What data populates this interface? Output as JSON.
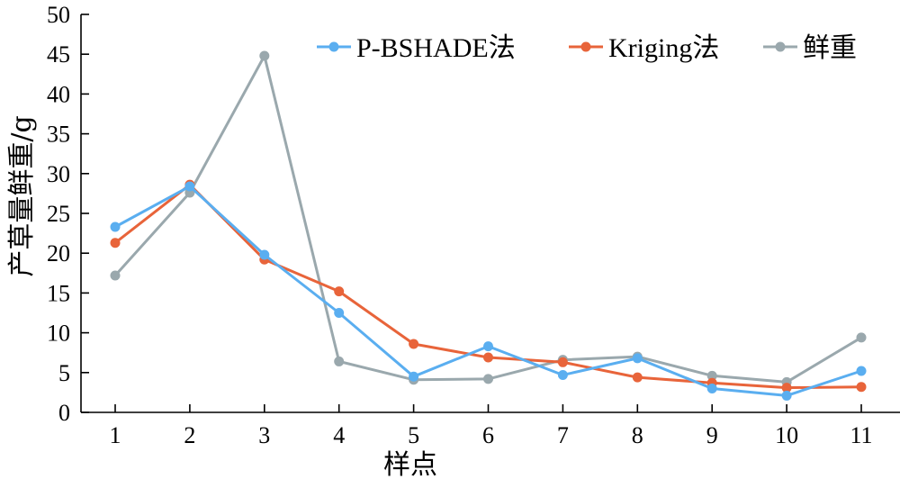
{
  "chart_data": {
    "type": "line",
    "title": "",
    "xlabel": "样点",
    "ylabel": "产草量鲜重/g",
    "categories": [
      "1",
      "2",
      "3",
      "4",
      "5",
      "6",
      "7",
      "8",
      "9",
      "10",
      "11"
    ],
    "ylim": [
      0,
      50
    ],
    "yticks": [
      "0",
      "5",
      "10",
      "15",
      "20",
      "25",
      "30",
      "35",
      "40",
      "45",
      "50"
    ],
    "grid": false,
    "legend_position": "top-right",
    "series": [
      {
        "name": "P-BSHADE法",
        "color": "#5aaef0",
        "values": [
          23.3,
          28.4,
          19.8,
          12.5,
          4.5,
          8.3,
          4.7,
          6.8,
          3.0,
          2.1,
          5.2
        ]
      },
      {
        "name": "Kriging法",
        "color": "#e8643a",
        "values": [
          21.3,
          28.6,
          19.2,
          15.2,
          8.6,
          6.9,
          6.3,
          4.4,
          3.7,
          3.1,
          3.2
        ]
      },
      {
        "name": "鲜重",
        "color": "#9aa8ad",
        "values": [
          17.2,
          27.6,
          44.8,
          6.4,
          4.1,
          4.2,
          6.6,
          7.0,
          4.6,
          3.8,
          9.4
        ]
      }
    ]
  }
}
